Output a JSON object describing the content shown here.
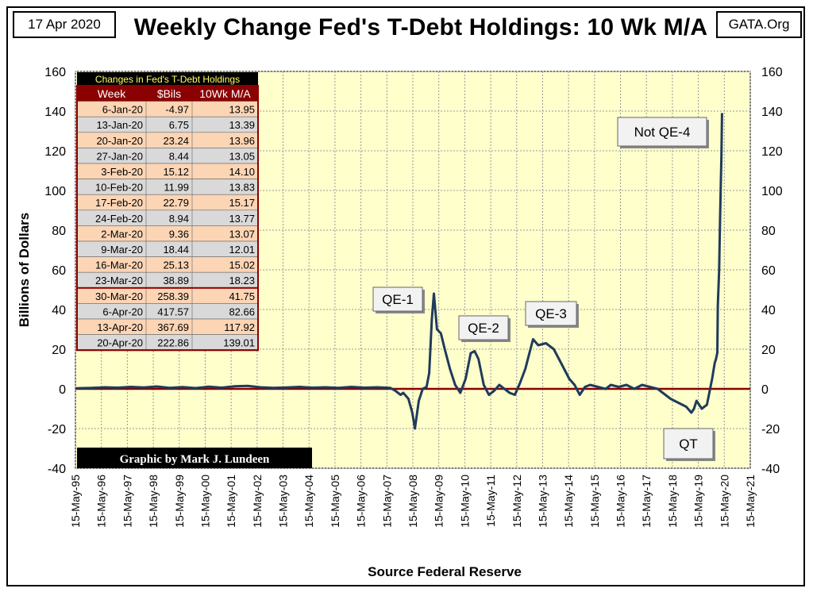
{
  "header": {
    "date": "17 Apr 2020",
    "title": "Weekly Change Fed's T-Debt Holdings: 10 Wk M/A",
    "site": "GATA.Org"
  },
  "colors": {
    "plot_bg": "#ffffcc",
    "line": "#1f3b5c",
    "zero_line": "#8b0000",
    "grid": "#999999",
    "table_header": "#8b0000",
    "row_peach": "#fcd5b5",
    "row_gray": "#d9d9d9",
    "credit_bg": "#000000"
  },
  "chart_data": {
    "type": "line",
    "title": "Weekly Change Fed's T-Debt Holdings: 10 Wk M/A",
    "xlabel": "Source Federal Reserve",
    "ylabel": "Billions of Dollars",
    "ylim": [
      -40,
      160
    ],
    "yticks": [
      -40,
      -20,
      0,
      20,
      40,
      60,
      80,
      100,
      120,
      140,
      160
    ],
    "xlim": [
      1995.37,
      2021.37
    ],
    "xtick_labels": [
      "15-May-95",
      "15-May-96",
      "15-May-97",
      "15-May-98",
      "15-May-99",
      "15-May-00",
      "15-May-01",
      "15-May-02",
      "15-May-03",
      "15-May-04",
      "15-May-05",
      "15-May-06",
      "15-May-07",
      "15-May-08",
      "15-May-09",
      "15-May-10",
      "15-May-11",
      "15-May-12",
      "15-May-13",
      "15-May-14",
      "15-May-15",
      "15-May-16",
      "15-May-17",
      "15-May-18",
      "15-May-19",
      "15-May-20",
      "15-May-21"
    ],
    "grid": true,
    "series": [
      {
        "x": [
          1995.4,
          1996.0,
          1996.5,
          1997.0,
          1997.5,
          1998.0,
          1998.5,
          1999.0,
          1999.5,
          2000.0,
          2000.5,
          2001.0,
          2001.5,
          2002.0,
          2002.5,
          2003.0,
          2003.5,
          2004.0,
          2004.5,
          2005.0,
          2005.5,
          2006.0,
          2006.5,
          2007.0,
          2007.5,
          2007.7,
          2007.9,
          2008.0,
          2008.2,
          2008.35,
          2008.45,
          2008.6,
          2008.75,
          2008.9,
          2009.0,
          2009.1,
          2009.18,
          2009.3,
          2009.45,
          2009.6,
          2009.8,
          2010.0,
          2010.2,
          2010.4,
          2010.6,
          2010.75,
          2010.9,
          2011.1,
          2011.3,
          2011.5,
          2011.7,
          2011.9,
          2012.1,
          2012.3,
          2012.5,
          2012.7,
          2012.9,
          2013.0,
          2013.2,
          2013.5,
          2013.8,
          2014.0,
          2014.2,
          2014.4,
          2014.6,
          2014.8,
          2015.0,
          2015.2,
          2015.5,
          2015.8,
          2016.0,
          2016.3,
          2016.6,
          2016.9,
          2017.2,
          2017.5,
          2017.8,
          2018.0,
          2018.3,
          2018.6,
          2018.9,
          2019.1,
          2019.2,
          2019.3,
          2019.5,
          2019.7,
          2019.9,
          2020.0,
          2020.05,
          2020.1,
          2020.12,
          2020.17,
          2020.2,
          2020.23,
          2020.26,
          2020.28
        ],
        "y": [
          0.3,
          0.5,
          0.8,
          0.6,
          1.0,
          0.7,
          1.2,
          0.5,
          0.9,
          0.4,
          1.1,
          0.6,
          1.3,
          1.5,
          0.8,
          0.5,
          0.7,
          1.0,
          0.6,
          0.8,
          0.5,
          1.0,
          0.6,
          0.8,
          0.5,
          -1,
          -3,
          -2,
          -5,
          -12,
          -20,
          -6,
          0,
          1,
          8,
          35,
          48,
          30,
          28,
          20,
          10,
          2,
          -2,
          5,
          18,
          19,
          15,
          2,
          -3,
          -1,
          2,
          0,
          -2,
          -3,
          3,
          10,
          20,
          25,
          22,
          23,
          20,
          15,
          10,
          5,
          2,
          -3,
          1,
          2,
          1,
          0,
          2,
          1,
          2,
          0,
          2,
          1,
          0,
          -2,
          -5,
          -7,
          -9,
          -12,
          -10,
          -6,
          -10,
          -8,
          5,
          13,
          15,
          18.23,
          41.75,
          60,
          82.66,
          100,
          117.92,
          139.01
        ]
      }
    ],
    "annotations": [
      "QE-1",
      "QE-2",
      "QE-3",
      "Not QE-4",
      "QT"
    ],
    "table": {
      "title": "Changes in Fed's T-Debt Holdings",
      "columns": [
        "Week",
        "$Bils",
        "10Wk M/A"
      ],
      "rows": [
        [
          "6-Jan-20",
          "-4.97",
          "13.95"
        ],
        [
          "13-Jan-20",
          "6.75",
          "13.39"
        ],
        [
          "20-Jan-20",
          "23.24",
          "13.96"
        ],
        [
          "27-Jan-20",
          "8.44",
          "13.05"
        ],
        [
          "3-Feb-20",
          "15.12",
          "14.10"
        ],
        [
          "10-Feb-20",
          "11.99",
          "13.83"
        ],
        [
          "17-Feb-20",
          "22.79",
          "15.17"
        ],
        [
          "24-Feb-20",
          "8.94",
          "13.77"
        ],
        [
          "2-Mar-20",
          "9.36",
          "13.07"
        ],
        [
          "9-Mar-20",
          "18.44",
          "12.01"
        ],
        [
          "16-Mar-20",
          "25.13",
          "15.02"
        ],
        [
          "23-Mar-20",
          "38.89",
          "18.23"
        ],
        [
          "30-Mar-20",
          "258.39",
          "41.75"
        ],
        [
          "6-Apr-20",
          "417.57",
          "82.66"
        ],
        [
          "13-Apr-20",
          "367.69",
          "117.92"
        ],
        [
          "20-Apr-20",
          "222.86",
          "139.01"
        ]
      ]
    },
    "credit": "Graphic by Mark J. Lundeen"
  }
}
